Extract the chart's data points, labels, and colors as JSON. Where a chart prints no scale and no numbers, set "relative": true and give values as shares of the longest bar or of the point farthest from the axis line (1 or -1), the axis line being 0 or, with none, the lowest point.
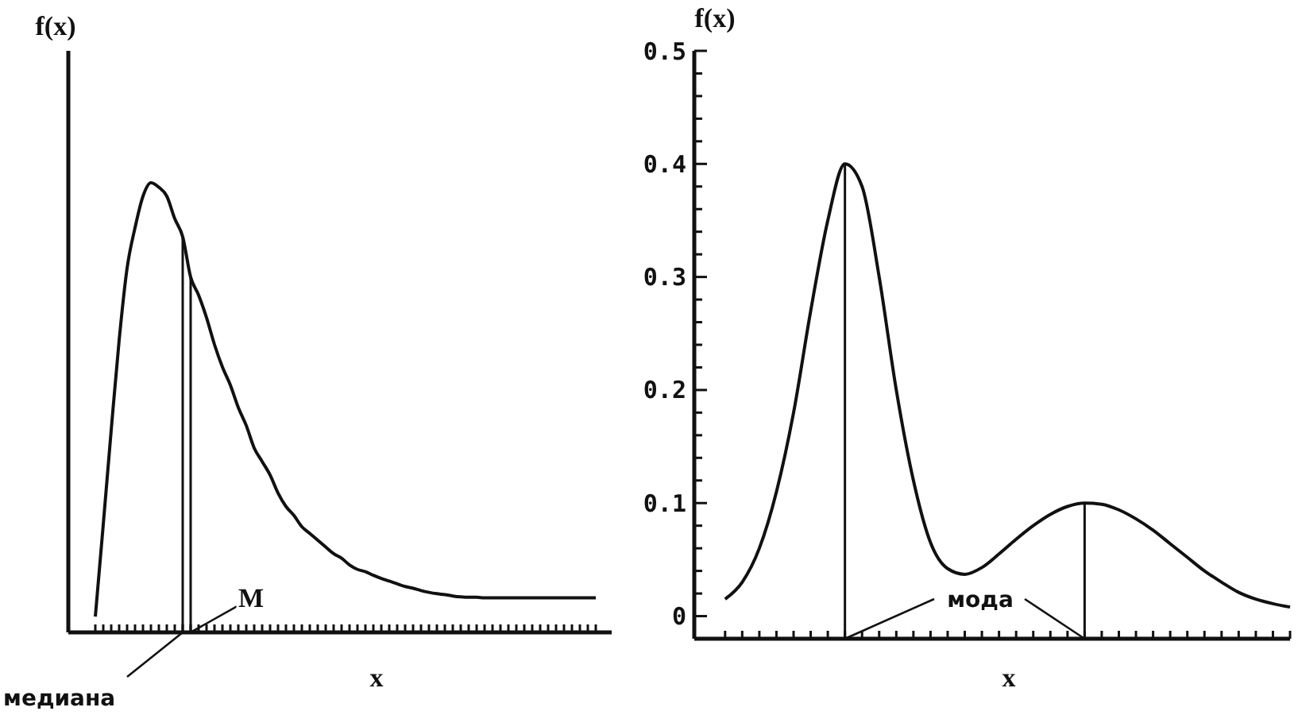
{
  "chart_data": [
    {
      "type": "line",
      "relative": true,
      "xlabel": "x",
      "ylabel": "f(x)",
      "categories": [
        null,
        null,
        null,
        null,
        null,
        null,
        null,
        null,
        null,
        null,
        null,
        null,
        null,
        null,
        null,
        null,
        null,
        null,
        null,
        null,
        null,
        null,
        null,
        null,
        null,
        null,
        null,
        null,
        null,
        null,
        null,
        null,
        null,
        null,
        null,
        null,
        null,
        null,
        null,
        null,
        null,
        null,
        null,
        null,
        null,
        null,
        null,
        null,
        null,
        null,
        null,
        null,
        null,
        null,
        null,
        null,
        null,
        null,
        null,
        null,
        null,
        null,
        null,
        null
      ],
      "series": [
        {
          "color": "#111111",
          "values": [
            0.035,
            0.24,
            0.45,
            0.65,
            0.81,
            0.9,
            0.97,
            1,
            0.99,
            0.97,
            0.92,
            0.88,
            0.79,
            0.75,
            0.7,
            0.64,
            0.59,
            0.55,
            0.5,
            0.46,
            0.41,
            0.38,
            0.35,
            0.31,
            0.28,
            0.26,
            0.235,
            0.22,
            0.205,
            0.19,
            0.175,
            0.165,
            0.15,
            0.14,
            0.135,
            0.127,
            0.12,
            0.114,
            0.108,
            0.102,
            0.098,
            0.093,
            0.089,
            0.086,
            0.084,
            0.081,
            0.079,
            0.078,
            0.078,
            0.077,
            0.077,
            0.077,
            0.077,
            0.077,
            0.077,
            0.077,
            0.077,
            0.077,
            0.077,
            0.077,
            0.077,
            0.077,
            0.077,
            0.077
          ]
        }
      ],
      "annotations": [
        "медиана",
        "M"
      ]
    },
    {
      "type": "line",
      "xlabel": "x",
      "ylabel": "f(x)",
      "categories": [
        null,
        null,
        null,
        null,
        null,
        null,
        null,
        null,
        null,
        null,
        null,
        null,
        null,
        null,
        null,
        null,
        null,
        null,
        null,
        null,
        null,
        null,
        null,
        null,
        null,
        null,
        null,
        null,
        null,
        null,
        null,
        null,
        null,
        null
      ],
      "series": [
        {
          "color": "#111111",
          "values": [
            0.015,
            0.03,
            0.06,
            0.11,
            0.18,
            0.27,
            0.35,
            0.4,
            0.38,
            0.3,
            0.2,
            0.12,
            0.065,
            0.042,
            0.037,
            0.043,
            0.055,
            0.068,
            0.08,
            0.09,
            0.097,
            0.1,
            0.099,
            0.094,
            0.086,
            0.076,
            0.064,
            0.052,
            0.04,
            0.03,
            0.021,
            0.015,
            0.011,
            0.008
          ]
        }
      ],
      "ylim": [
        -0.02,
        0.5
      ],
      "yticks": [
        {
          "value": 0,
          "label": "0"
        },
        {
          "value": 0.02,
          "label": null
        },
        {
          "value": 0.04,
          "label": null
        },
        {
          "value": 0.06,
          "label": null
        },
        {
          "value": 0.08,
          "label": null
        },
        0.1,
        {
          "value": 0.12,
          "label": null
        },
        {
          "value": 0.14,
          "label": null
        },
        {
          "value": 0.16,
          "label": null
        },
        {
          "value": 0.18,
          "label": null
        },
        0.2,
        {
          "value": 0.22,
          "label": null
        },
        {
          "value": 0.24,
          "label": null
        },
        {
          "value": 0.26,
          "label": null
        },
        {
          "value": 0.28,
          "label": null
        },
        0.3,
        {
          "value": 0.32,
          "label": null
        },
        {
          "value": 0.34,
          "label": null
        },
        {
          "value": 0.36,
          "label": null
        },
        {
          "value": 0.38,
          "label": null
        },
        0.4,
        {
          "value": 0.42,
          "label": null
        },
        {
          "value": 0.44,
          "label": null
        },
        {
          "value": 0.46,
          "label": null
        },
        {
          "value": 0.48,
          "label": null
        },
        0.5
      ],
      "annotations": [
        "мода"
      ]
    }
  ]
}
